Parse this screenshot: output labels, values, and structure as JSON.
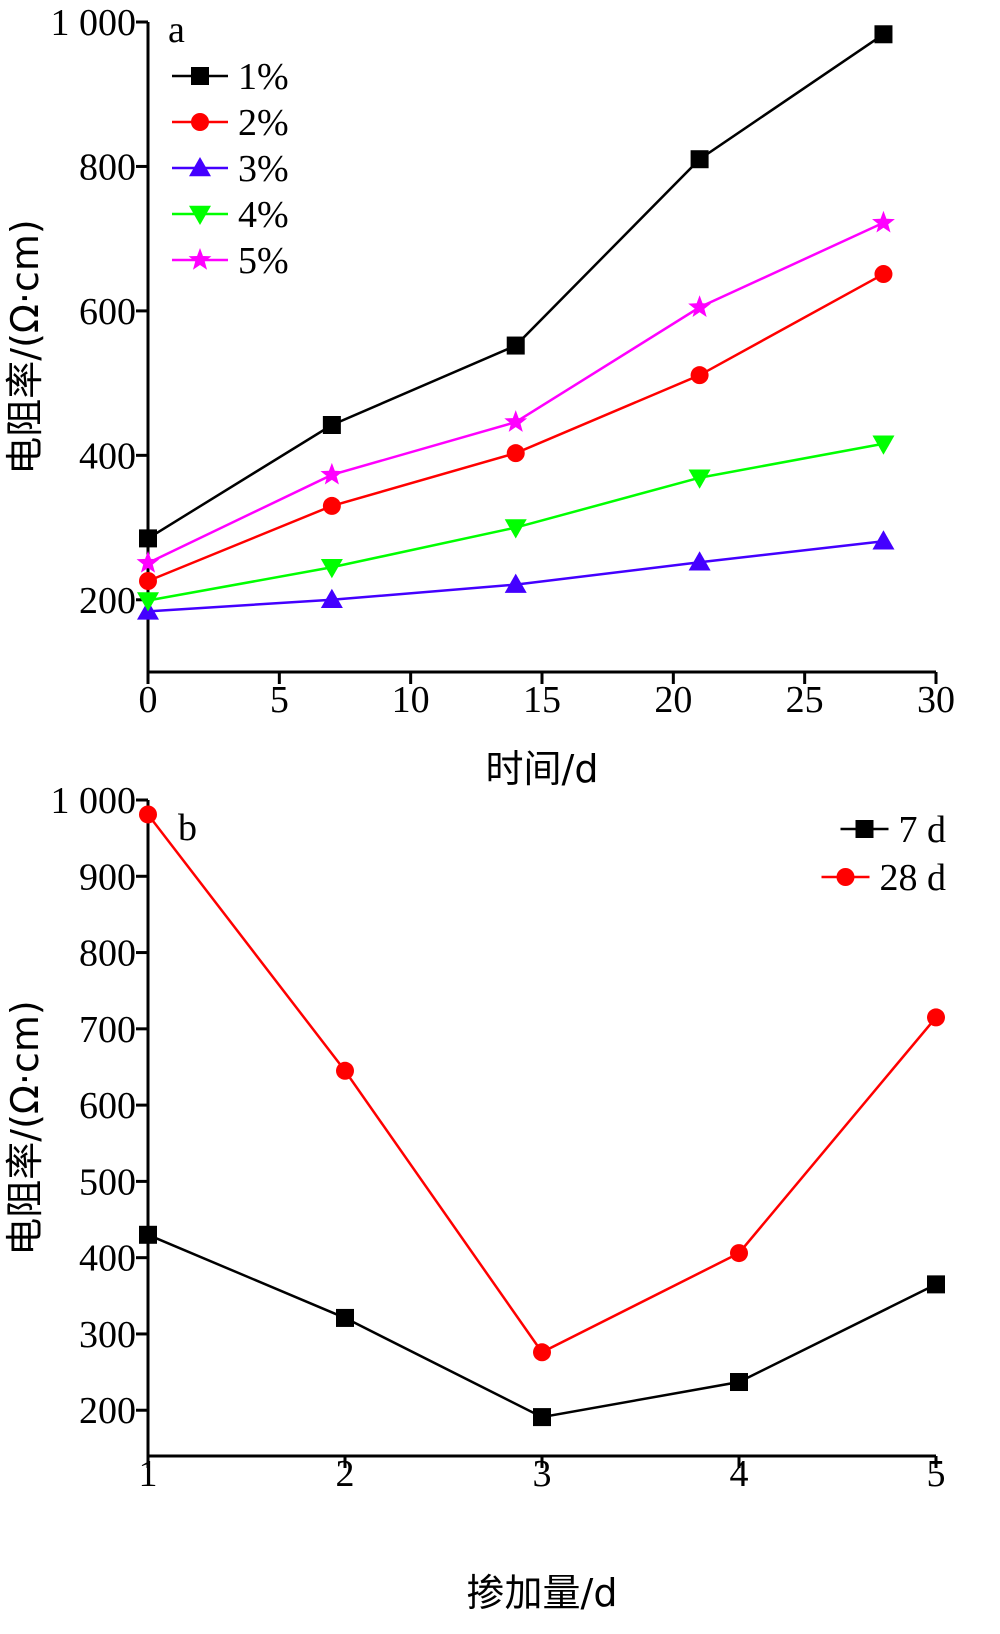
{
  "chart_data": [
    {
      "type": "line",
      "panel_label": "a",
      "xlabel": "时间/d",
      "ylabel": "电阻率/(Ω·cm)",
      "xlim": [
        0,
        30
      ],
      "ylim": [
        100,
        1000
      ],
      "xticks": [
        0,
        5,
        10,
        15,
        20,
        25,
        30
      ],
      "xtick_labels": [
        "0",
        "5",
        "10",
        "15",
        "20",
        "25",
        "30"
      ],
      "yticks": [
        200,
        400,
        600,
        800,
        1000
      ],
      "ytick_labels": [
        "200",
        "400",
        "600",
        "800",
        "1 000"
      ],
      "grid": false,
      "legend_position": "top-left",
      "x": [
        0,
        7,
        14,
        21,
        28
      ],
      "series": [
        {
          "name": "1%",
          "color": "#000000",
          "marker": "square",
          "values": [
            285,
            442,
            552,
            810,
            983
          ]
        },
        {
          "name": "2%",
          "color": "#ff0000",
          "marker": "circle",
          "values": [
            226,
            330,
            403,
            511,
            651
          ]
        },
        {
          "name": "3%",
          "color": "#4400ff",
          "marker": "triangle-up",
          "values": [
            184,
            200,
            221,
            252,
            281
          ]
        },
        {
          "name": "4%",
          "color": "#00ff00",
          "marker": "triangle-down",
          "values": [
            199,
            245,
            300,
            369,
            416
          ]
        },
        {
          "name": "5%",
          "color": "#ff00ff",
          "marker": "star",
          "values": [
            251,
            373,
            446,
            605,
            722
          ]
        }
      ]
    },
    {
      "type": "line",
      "panel_label": "b",
      "xlabel": "掺加量/d",
      "ylabel": "电阻率/(Ω·cm)",
      "xlim": [
        1,
        5
      ],
      "ylim": [
        140,
        1000
      ],
      "xticks": [
        1,
        2,
        3,
        4,
        5
      ],
      "xtick_labels": [
        "1",
        "2",
        "3",
        "4",
        "5"
      ],
      "yticks": [
        200,
        300,
        400,
        500,
        600,
        700,
        800,
        900,
        1000
      ],
      "ytick_labels": [
        "200",
        "300",
        "400",
        "500",
        "600",
        "700",
        "800",
        "900",
        "1 000"
      ],
      "grid": false,
      "legend_position": "top-right",
      "x": [
        1,
        2,
        3,
        4,
        5
      ],
      "series": [
        {
          "name": "7 d",
          "color": "#000000",
          "marker": "square",
          "values": [
            430,
            321,
            191,
            237,
            365
          ]
        },
        {
          "name": "28 d",
          "color": "#ff0000",
          "marker": "circle",
          "values": [
            981,
            645,
            276,
            406,
            715
          ]
        }
      ]
    }
  ]
}
